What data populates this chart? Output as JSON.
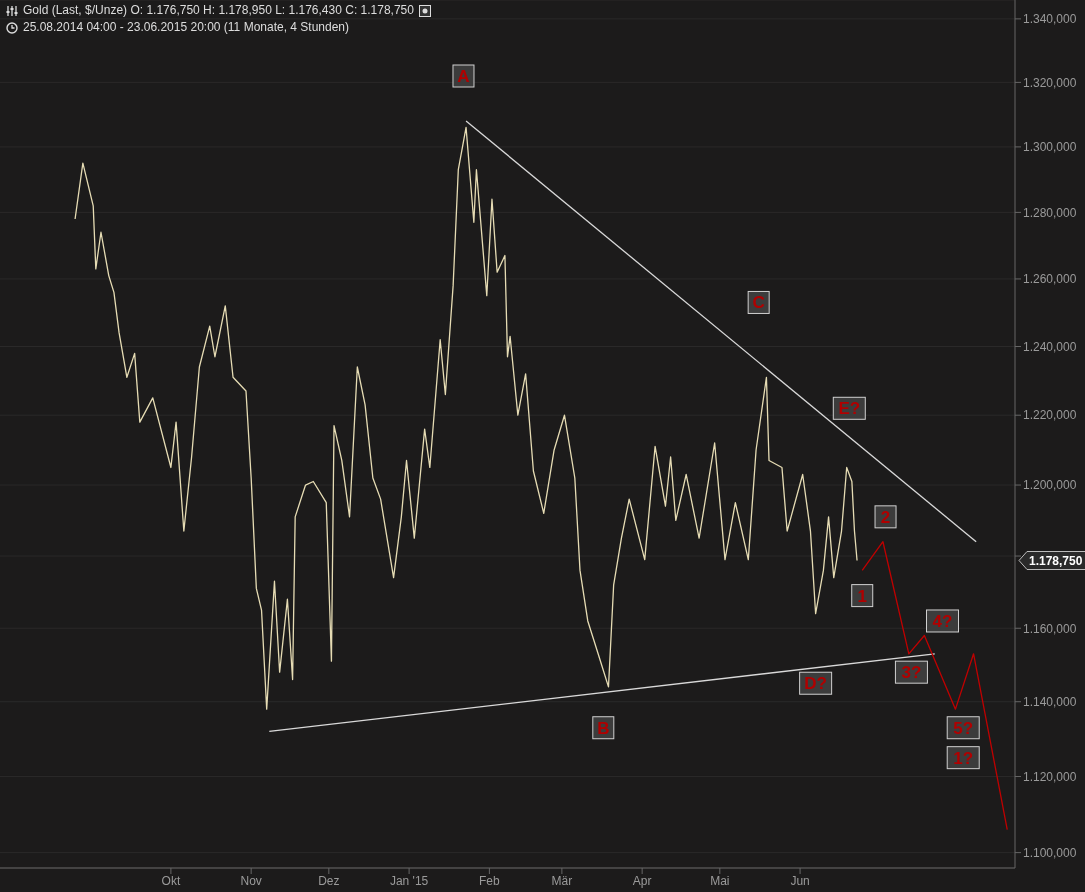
{
  "chart_data": {
    "type": "line",
    "title": "Gold (Last, $/Unze)  O: 1.176,750  H: 1.178,950  L: 1.176,430  C: 1.178,750",
    "subtitle": "25.08.2014 04:00 - 23.06.2015 20:00 (11 Monate, 4 Stunden)",
    "log": true,
    "grid": "y",
    "marker": "none",
    "line_style": "solid",
    "xlim": [
      "2014-07-27",
      "2015-08-23"
    ],
    "xticks": [
      {
        "value": "2014-10-01",
        "label": "Okt"
      },
      {
        "value": "2014-11-01",
        "label": "Nov"
      },
      {
        "value": "2014-12-01",
        "label": "Dez"
      },
      {
        "value": "2015-01-01",
        "label": "Jan '15"
      },
      {
        "value": "2015-02-01",
        "label": "Feb"
      },
      {
        "value": "2015-03-01",
        "label": "Mär"
      },
      {
        "value": "2015-04-01",
        "label": "Apr"
      },
      {
        "value": "2015-05-01",
        "label": "Mai"
      },
      {
        "value": "2015-06-01",
        "label": "Jun"
      }
    ],
    "ylim": [
      1096,
      1346
    ],
    "yticks": [
      {
        "value": 1100,
        "label": "1.100,000"
      },
      {
        "value": 1120,
        "label": "1.120,000"
      },
      {
        "value": 1140,
        "label": "1.140,000"
      },
      {
        "value": 1160,
        "label": "1.160,000"
      },
      {
        "value": 1180,
        "label": null
      },
      {
        "value": 1200,
        "label": "1.200,000"
      },
      {
        "value": 1220,
        "label": "1.220,000"
      },
      {
        "value": 1240,
        "label": "1.240,000"
      },
      {
        "value": 1260,
        "label": "1.260,000"
      },
      {
        "value": 1280,
        "label": "1.280,000"
      },
      {
        "value": 1300,
        "label": "1.300,000"
      },
      {
        "value": 1320,
        "label": "1.320,000"
      },
      {
        "value": 1340,
        "label": "1.340,000"
      }
    ],
    "series": [
      {
        "color": "#e6dcb4",
        "x": [
          "2014-08-25",
          "2014-08-28",
          "2014-09-01",
          "2014-09-02",
          "2014-09-04",
          "2014-09-07",
          "2014-09-09",
          "2014-09-11",
          "2014-09-14",
          "2014-09-17",
          "2014-09-19",
          "2014-09-24",
          "2014-10-01",
          "2014-10-03",
          "2014-10-06",
          "2014-10-09",
          "2014-10-12",
          "2014-10-16",
          "2014-10-18",
          "2014-10-22",
          "2014-10-25",
          "2014-10-30",
          "2014-11-01",
          "2014-11-03",
          "2014-11-05",
          "2014-11-07",
          "2014-11-10",
          "2014-11-12",
          "2014-11-15",
          "2014-11-17",
          "2014-11-18",
          "2014-11-22",
          "2014-11-25",
          "2014-11-30",
          "2014-12-02",
          "2014-12-03",
          "2014-12-06",
          "2014-12-09",
          "2014-12-12",
          "2014-12-15",
          "2014-12-18",
          "2014-12-21",
          "2014-12-26",
          "2014-12-29",
          "2014-12-31",
          "2015-01-03",
          "2015-01-07",
          "2015-01-09",
          "2015-01-13",
          "2015-01-15",
          "2015-01-18",
          "2015-01-20",
          "2015-01-23",
          "2015-01-26",
          "2015-01-27",
          "2015-01-31",
          "2015-02-02",
          "2015-02-04",
          "2015-02-07",
          "2015-02-08",
          "2015-02-09",
          "2015-02-12",
          "2015-02-15",
          "2015-02-18",
          "2015-02-22",
          "2015-02-26",
          "2015-03-02",
          "2015-03-06",
          "2015-03-08",
          "2015-03-11",
          "2015-03-15",
          "2015-03-19",
          "2015-03-21",
          "2015-03-24",
          "2015-03-27",
          "2015-04-02",
          "2015-04-06",
          "2015-04-10",
          "2015-04-12",
          "2015-04-14",
          "2015-04-18",
          "2015-04-23",
          "2015-04-29",
          "2015-05-03",
          "2015-05-07",
          "2015-05-12",
          "2015-05-15",
          "2015-05-19",
          "2015-05-20",
          "2015-05-25",
          "2015-05-27",
          "2015-06-02",
          "2015-06-05",
          "2015-06-07",
          "2015-06-10",
          "2015-06-12",
          "2015-06-14",
          "2015-06-17",
          "2015-06-19",
          "2015-06-21",
          "2015-06-22",
          "2015-06-23"
        ],
        "values": [
          1278,
          1295,
          1282,
          1263,
          1274,
          1261,
          1256,
          1244,
          1231,
          1238,
          1218,
          1225,
          1205,
          1218,
          1187,
          1208,
          1234,
          1246,
          1237,
          1252,
          1231,
          1227,
          1202,
          1171,
          1165,
          1138,
          1173,
          1148,
          1168,
          1146,
          1191,
          1200,
          1201,
          1195,
          1151,
          1217,
          1207,
          1191,
          1234,
          1223,
          1202,
          1196,
          1174,
          1191,
          1207,
          1185,
          1216,
          1205,
          1242,
          1226,
          1258,
          1293,
          1306,
          1277,
          1293,
          1255,
          1284,
          1262,
          1267,
          1237,
          1243,
          1220,
          1232,
          1204,
          1192,
          1210,
          1220,
          1202,
          1176,
          1162,
          1153,
          1144,
          1172,
          1185,
          1196,
          1179,
          1211,
          1194,
          1208,
          1190,
          1203,
          1185,
          1212,
          1179,
          1195,
          1179,
          1210,
          1231,
          1207,
          1205,
          1187,
          1203,
          1187,
          1164,
          1176,
          1191,
          1174,
          1187,
          1205,
          1201,
          1187,
          1178.75
        ]
      },
      {
        "color": "#d9d9d9",
        "x": [
          "2015-01-23",
          "2015-08-08"
        ],
        "values": [
          1308,
          1184
        ]
      },
      {
        "color": "#d9d9d9",
        "x": [
          "2014-11-08",
          "2015-07-23"
        ],
        "values": [
          1132,
          1153
        ]
      },
      {
        "color": "#c00000",
        "x": [
          "2015-06-25",
          "2015-07-03",
          "2015-07-13",
          "2015-07-19",
          "2015-07-31",
          "2015-08-07",
          "2015-08-20"
        ],
        "values": [
          1176,
          1184,
          1153,
          1158,
          1138,
          1153,
          1106
        ]
      }
    ],
    "annotations": [
      {
        "text": "A",
        "x": "2015-01-22",
        "y": 1322
      },
      {
        "text": "B",
        "x": "2015-03-17",
        "y": 1133
      },
      {
        "text": "C",
        "x": "2015-05-16",
        "y": 1253
      },
      {
        "text": "D?",
        "x": "2015-06-07",
        "y": 1145
      },
      {
        "text": "E?",
        "x": "2015-06-20",
        "y": 1222
      },
      {
        "text": "1",
        "x": "2015-06-25",
        "y": 1169
      },
      {
        "text": "2",
        "x": "2015-07-04",
        "y": 1191
      },
      {
        "text": "3?",
        "x": "2015-07-14",
        "y": 1148
      },
      {
        "text": "4?",
        "x": "2015-07-26",
        "y": 1162
      },
      {
        "text": "5?",
        "x": "2015-08-03",
        "y": 1133
      },
      {
        "text": "1?",
        "x": "2015-08-03",
        "y": 1125
      },
      "1.178,750"
    ]
  }
}
